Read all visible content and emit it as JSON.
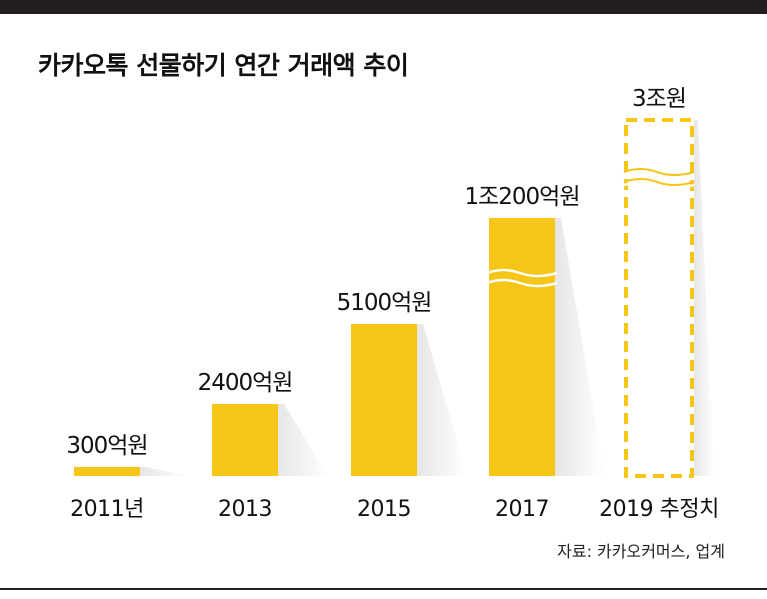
{
  "title": "카카오톡 선물하기 연간 거래액 추이",
  "source": "자료: 카카오커머스, 업계",
  "chart_data": {
    "type": "bar",
    "categories": [
      "2011년",
      "2013",
      "2015",
      "2017",
      "2019 추정치"
    ],
    "values": [
      300,
      2400,
      5100,
      10200,
      30000
    ],
    "value_labels": [
      "300억원",
      "2400억원",
      "5100억원",
      "1조200억원",
      "3조원"
    ],
    "unit": "억원",
    "axis_break": [
      false,
      false,
      false,
      true,
      true
    ],
    "estimate": [
      false,
      false,
      false,
      false,
      true
    ],
    "colors": {
      "bar": "#f5c518",
      "bar_side": "#f8f8f8",
      "estimate_outline": "#f5c518"
    }
  }
}
